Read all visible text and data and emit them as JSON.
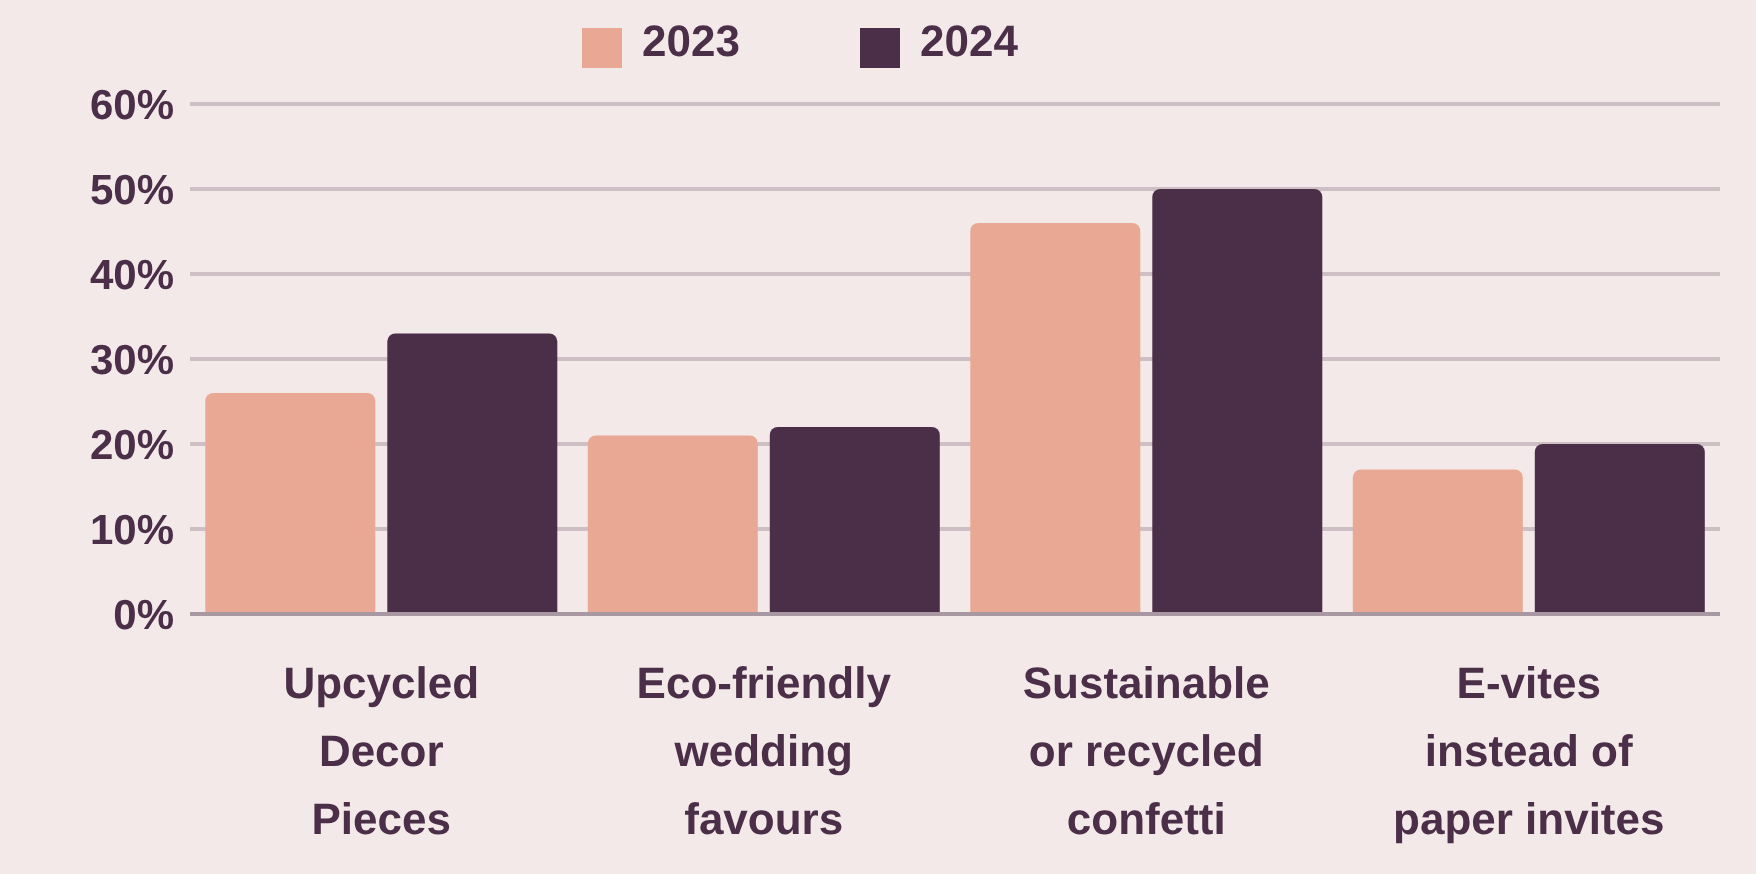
{
  "chart_data": {
    "type": "bar",
    "categories": [
      "Upcycled Decor Pieces",
      "Eco-friendly wedding favours",
      "Sustainable or recycled confetti",
      "E-vites instead of paper invites"
    ],
    "series": [
      {
        "name": "2023",
        "color": "#e9a893",
        "values": [
          26,
          21,
          46,
          17
        ]
      },
      {
        "name": "2024",
        "color": "#4b2f48",
        "values": [
          33,
          22,
          50,
          20
        ]
      }
    ],
    "ylim": [
      0,
      60
    ],
    "yticks": [
      {
        "value": 0,
        "label": "0%"
      },
      {
        "value": 10,
        "label": "10%"
      },
      {
        "value": 20,
        "label": "20%"
      },
      {
        "value": 30,
        "label": "30%"
      },
      {
        "value": 40,
        "label": "40%"
      },
      {
        "value": 50,
        "label": "50%"
      },
      {
        "value": 60,
        "label": "60%"
      }
    ],
    "grid": "y",
    "legend": "top"
  }
}
